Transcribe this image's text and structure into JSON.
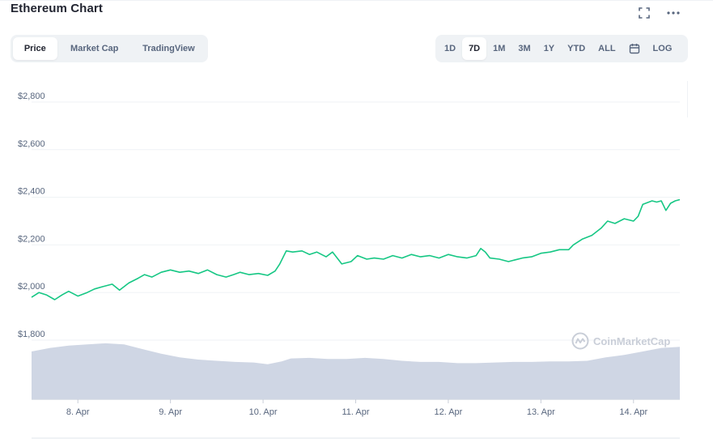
{
  "header": {
    "title": "Ethereum Chart",
    "fullscreen_icon": "fullscreen-icon",
    "more_icon": "more-horizontal-icon"
  },
  "view_tabs": [
    {
      "label": "Price",
      "active": true
    },
    {
      "label": "Market Cap",
      "active": false
    },
    {
      "label": "TradingView",
      "active": false
    }
  ],
  "range_tabs": [
    {
      "label": "1D",
      "active": false
    },
    {
      "label": "7D",
      "active": true
    },
    {
      "label": "1M",
      "active": false
    },
    {
      "label": "3M",
      "active": false
    },
    {
      "label": "1Y",
      "active": false
    },
    {
      "label": "YTD",
      "active": false
    },
    {
      "label": "ALL",
      "active": false
    }
  ],
  "calendar_icon": "calendar-icon",
  "log_label": "LOG",
  "watermark": "CoinMarketCap",
  "colors": {
    "line": "#16c784",
    "volume": "#cfd6e4",
    "grid": "#eff2f5",
    "axis_text": "#58667e"
  },
  "chart_data": {
    "type": "line",
    "title": "",
    "xlabel": "",
    "ylabel": "",
    "ylim": [
      1800,
      2800
    ],
    "yticks": [
      1800,
      2000,
      2200,
      2400,
      2600,
      2800
    ],
    "ytick_labels": [
      "$1,800",
      "$2,000",
      "$2,200",
      "$2,400",
      "$2,600",
      "$2,800"
    ],
    "xlim": [
      7.5,
      14.5
    ],
    "xticks": [
      8,
      9,
      10,
      11,
      12,
      13,
      14
    ],
    "xtick_labels": [
      "8. Apr",
      "9. Apr",
      "10. Apr",
      "11. Apr",
      "12. Apr",
      "13. Apr",
      "14. Apr"
    ],
    "grid": true,
    "series": [
      {
        "values_x": [
          7.5,
          7.58,
          7.66,
          7.75,
          7.83,
          7.9,
          8.0,
          8.1,
          8.18,
          8.27,
          8.37,
          8.45,
          8.55,
          8.65,
          8.72,
          8.8,
          8.9,
          9.0,
          9.1,
          9.2,
          9.3,
          9.4,
          9.5,
          9.6,
          9.68,
          9.75,
          9.85,
          9.95,
          10.05,
          10.13,
          10.18,
          10.25,
          10.32,
          10.42,
          10.5,
          10.58,
          10.68,
          10.75,
          10.85,
          10.95,
          11.02,
          11.12,
          11.2,
          11.3,
          11.4,
          11.5,
          11.6,
          11.7,
          11.8,
          11.9,
          12.0,
          12.1,
          12.2,
          12.3,
          12.35,
          12.4,
          12.45,
          12.55,
          12.65,
          12.7,
          12.8,
          12.9,
          13.0,
          13.1,
          13.2,
          13.3,
          13.35,
          13.45,
          13.55,
          13.65,
          13.72,
          13.8,
          13.9,
          14.0,
          14.05,
          14.1,
          14.2,
          14.25,
          14.3,
          14.35,
          14.4,
          14.45,
          14.5
        ],
        "values_y": [
          1980,
          2000,
          1990,
          1970,
          1990,
          2005,
          1985,
          2000,
          2015,
          2025,
          2035,
          2010,
          2040,
          2060,
          2075,
          2065,
          2085,
          2095,
          2085,
          2090,
          2080,
          2095,
          2075,
          2065,
          2075,
          2085,
          2075,
          2080,
          2072,
          2090,
          2120,
          2175,
          2170,
          2175,
          2160,
          2170,
          2150,
          2170,
          2120,
          2130,
          2155,
          2140,
          2145,
          2140,
          2155,
          2145,
          2160,
          2150,
          2155,
          2145,
          2160,
          2150,
          2145,
          2155,
          2185,
          2170,
          2145,
          2140,
          2130,
          2135,
          2145,
          2150,
          2165,
          2170,
          2180,
          2180,
          2200,
          2225,
          2240,
          2270,
          2300,
          2290,
          2310,
          2300,
          2320,
          2370,
          2385,
          2380,
          2385,
          2345,
          2375,
          2385,
          2390
        ]
      }
    ],
    "volume": {
      "values_x": [
        7.5,
        7.7,
        7.9,
        8.1,
        8.3,
        8.5,
        8.7,
        8.9,
        9.1,
        9.3,
        9.5,
        9.7,
        9.9,
        10.05,
        10.2,
        10.3,
        10.5,
        10.7,
        10.9,
        11.1,
        11.3,
        11.5,
        11.7,
        11.9,
        12.1,
        12.3,
        12.5,
        12.7,
        12.9,
        13.1,
        13.3,
        13.5,
        13.7,
        13.9,
        14.1,
        14.3,
        14.5
      ],
      "values": [
        0.82,
        0.88,
        0.92,
        0.94,
        0.96,
        0.94,
        0.86,
        0.78,
        0.72,
        0.68,
        0.66,
        0.64,
        0.63,
        0.6,
        0.65,
        0.7,
        0.71,
        0.69,
        0.69,
        0.71,
        0.69,
        0.66,
        0.64,
        0.64,
        0.62,
        0.62,
        0.63,
        0.64,
        0.64,
        0.65,
        0.65,
        0.66,
        0.72,
        0.76,
        0.82,
        0.88,
        0.9
      ]
    }
  }
}
